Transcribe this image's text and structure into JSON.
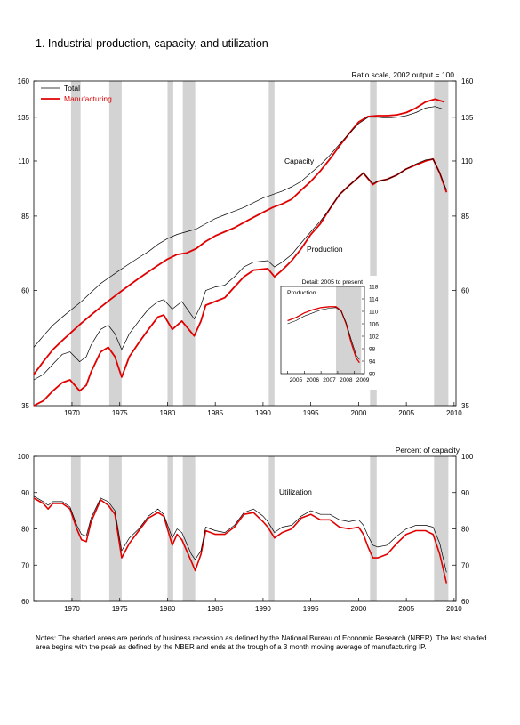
{
  "title": "1.  Industrial production, capacity, and utilization",
  "notes": "Notes: The shaded areas are periods of business recession as defined by the National Bureau of Economic Research (NBER). The last shaded area begins with the peak as defined by the NBER and ends at the trough of a 3 month moving average of manufacturing IP.",
  "colors": {
    "total": "#000000",
    "manufacturing": "#e00000",
    "recession": "#d3d3d3"
  },
  "chart_data": [
    {
      "type": "line",
      "scale_note": "Ratio scale, 2002 output = 100",
      "log_scale": true,
      "ylim": [
        35,
        160
      ],
      "yticks": [
        35,
        60,
        85,
        110,
        135,
        160
      ],
      "xlim": [
        1966,
        2010.2
      ],
      "xticks": [
        1970,
        1975,
        1980,
        1985,
        1990,
        1995,
        2000,
        2005,
        2010
      ],
      "legend": [
        "Total",
        "Manufacturing"
      ],
      "legend_position": "top-left",
      "annotations": [
        "Capacity",
        "Production"
      ],
      "recessions": [
        [
          1969.9,
          1970.9
        ],
        [
          1973.9,
          1975.2
        ],
        [
          1980.0,
          1980.6
        ],
        [
          1981.6,
          1982.9
        ],
        [
          1990.6,
          1991.2
        ],
        [
          2001.2,
          2001.9
        ],
        [
          2007.9,
          2009.4
        ]
      ],
      "series": [
        {
          "name": "Total",
          "x": [
            1966,
            1967,
            1968,
            1969,
            1970,
            1971,
            1972,
            1973,
            1974,
            1975,
            1976,
            1977,
            1978,
            1979,
            1980,
            1981,
            1982,
            1983,
            1984,
            1985,
            1986,
            1987,
            1988,
            1989,
            1990,
            1991,
            1992,
            1993,
            1994,
            1995,
            1996,
            1997,
            1998,
            1999,
            2000,
            2001,
            2002,
            2003,
            2004,
            2005,
            2006,
            2007,
            2008,
            2009
          ],
          "y": [
            46,
            48.5,
            51,
            53,
            55,
            57,
            59.5,
            62,
            64,
            66,
            68,
            70,
            72,
            74.5,
            76.5,
            78,
            79,
            80,
            82,
            84,
            85.5,
            87,
            88.5,
            90.5,
            92.5,
            94,
            95.5,
            97.5,
            100,
            104,
            108,
            113,
            119,
            125,
            131,
            135,
            135,
            134.5,
            135,
            136,
            138,
            141,
            142,
            140
          ]
        },
        {
          "name": "Total",
          "x": [
            1966,
            1967,
            1968,
            1969,
            1969.8,
            1970.8,
            1971.5,
            1972,
            1973,
            1973.8,
            1974.5,
            1975.2,
            1976,
            1977,
            1978,
            1979,
            1979.6,
            1980.5,
            1981.5,
            1982.8,
            1983.5,
            1984,
            1985,
            1986,
            1987,
            1988,
            1989,
            1990.5,
            1991.2,
            1992,
            1993,
            1994,
            1995,
            1996,
            1997,
            1998,
            1999,
            2000.5,
            2001.5,
            2002,
            2003,
            2004,
            2005,
            2006,
            2007,
            2007.8,
            2008.5,
            2009.2
          ],
          "y": [
            39.5,
            40.5,
            42.5,
            44.5,
            45,
            43,
            44,
            46.5,
            50,
            51,
            49,
            45.5,
            49,
            52,
            55,
            57,
            57.5,
            55,
            57,
            52.5,
            56,
            60,
            61,
            61.5,
            64,
            67,
            68.5,
            69,
            67,
            68.5,
            71,
            75,
            79,
            83,
            88,
            94,
            98,
            104,
            99,
            100,
            101,
            103,
            106,
            108.5,
            110.5,
            111,
            104,
            96
          ]
        },
        {
          "name": "Manufacturing",
          "x": [
            1966,
            1967,
            1968,
            1969,
            1970,
            1971,
            1972,
            1973,
            1974,
            1975,
            1976,
            1977,
            1978,
            1979,
            1980,
            1981,
            1982,
            1983,
            1984,
            1985,
            1986,
            1987,
            1988,
            1989,
            1990,
            1991,
            1992,
            1993,
            1994,
            1995,
            1996,
            1997,
            1998,
            1999,
            2000,
            2001,
            2002,
            2003,
            2004,
            2005,
            2006,
            2007,
            2008,
            2009
          ],
          "y": [
            40.5,
            43,
            45.5,
            47.5,
            49.5,
            51.5,
            53.5,
            55.5,
            57.5,
            59.5,
            61.5,
            63.5,
            65.5,
            67.5,
            69.5,
            71,
            71.5,
            73,
            75.5,
            77.5,
            79,
            80.5,
            82.5,
            84.5,
            86.5,
            88.5,
            90,
            92,
            96,
            100,
            105,
            111,
            118,
            125,
            132,
            135.5,
            136,
            136,
            136.5,
            138,
            141,
            145,
            147,
            145
          ]
        },
        {
          "name": "Manufacturing",
          "x": [
            1966,
            1967,
            1968,
            1969,
            1969.8,
            1970.8,
            1971.5,
            1972,
            1973,
            1973.8,
            1974.5,
            1975.2,
            1976,
            1977,
            1978,
            1979,
            1979.6,
            1980.5,
            1981.5,
            1982.8,
            1983.5,
            1984,
            1985,
            1986,
            1987,
            1988,
            1989,
            1990.5,
            1991.2,
            1992,
            1993,
            1994,
            1995,
            1996,
            1997,
            1998,
            1999,
            2000.5,
            2001.5,
            2002,
            2003,
            2004,
            2005,
            2006,
            2007,
            2007.8,
            2008.5,
            2009.2
          ],
          "y": [
            35,
            35.8,
            37.5,
            39,
            39.5,
            37.5,
            38.5,
            41,
            45,
            46,
            44,
            40,
            44,
            47,
            50,
            53,
            53.5,
            50,
            52,
            48.5,
            52,
            56,
            57,
            58,
            61,
            64,
            66,
            66.5,
            64,
            66,
            69,
            73,
            78,
            82,
            88,
            94,
            98,
            104,
            98.5,
            100,
            101,
            103,
            106,
            108,
            110,
            111,
            104,
            95
          ]
        }
      ],
      "inset": {
        "title": "Detail: 2005 to present",
        "label": "Production",
        "ylim": [
          90,
          118
        ],
        "yticks": [
          90,
          94,
          98,
          102,
          106,
          110,
          114,
          118
        ],
        "xlim": [
          2004.6,
          2009.6
        ],
        "xticks": [
          2005,
          2006,
          2007,
          2008,
          2009
        ],
        "series": [
          {
            "name": "Total",
            "x": [
              2005,
              2005.5,
              2006,
              2006.5,
              2007,
              2007.5,
              2007.9,
              2008.2,
              2008.5,
              2008.8,
              2009.1,
              2009.3
            ],
            "y": [
              106,
              107,
              108.5,
              109.5,
              110.5,
              111,
              111.2,
              110,
              106.5,
              101,
              96,
              94.5
            ]
          },
          {
            "name": "Manufacturing",
            "x": [
              2005,
              2005.5,
              2006,
              2006.5,
              2007,
              2007.5,
              2007.9,
              2008.2,
              2008.5,
              2008.8,
              2009.1,
              2009.3
            ],
            "y": [
              107,
              108,
              109.5,
              110.5,
              111.2,
              111.5,
              111.5,
              110.3,
              106,
              100,
              95,
              93.5
            ]
          }
        ]
      }
    },
    {
      "type": "line",
      "scale_note": "Percent of capacity",
      "ylim": [
        60,
        100
      ],
      "yticks": [
        60,
        70,
        80,
        90,
        100
      ],
      "xlim": [
        1966,
        2010.2
      ],
      "xticks": [
        1970,
        1975,
        1980,
        1985,
        1990,
        1995,
        2000,
        2005,
        2010
      ],
      "annotations": [
        "Utilization"
      ],
      "recessions": [
        [
          1969.9,
          1970.9
        ],
        [
          1973.9,
          1975.2
        ],
        [
          1980.0,
          1980.6
        ],
        [
          1981.6,
          1982.9
        ],
        [
          1990.6,
          1991.2
        ],
        [
          2001.2,
          2001.9
        ],
        [
          2007.9,
          2009.4
        ]
      ],
      "series": [
        {
          "name": "Total",
          "x": [
            1966,
            1967,
            1967.5,
            1968,
            1969,
            1969.8,
            1970.5,
            1971,
            1971.5,
            1972,
            1973,
            1973.8,
            1974.5,
            1975.2,
            1976,
            1977,
            1978,
            1979,
            1979.6,
            1980.5,
            1981,
            1981.5,
            1982.5,
            1982.9,
            1983.5,
            1984,
            1985,
            1986,
            1987,
            1988,
            1989,
            1990,
            1990.5,
            1991.2,
            1992,
            1993,
            1994,
            1995,
            1996,
            1997,
            1998,
            1999,
            2000,
            2000.5,
            2001,
            2001.5,
            2002,
            2003,
            2004,
            2005,
            2006,
            2007,
            2007.8,
            2008.5,
            2009.2
          ],
          "y": [
            89,
            87.5,
            86.5,
            87.5,
            87.5,
            86,
            81,
            78.5,
            78,
            83,
            88.5,
            87.5,
            85,
            74,
            77.5,
            80,
            83.5,
            85.5,
            84,
            77.5,
            80,
            79,
            73,
            71.5,
            74,
            80.5,
            79.5,
            79,
            81,
            84.5,
            85.5,
            83.5,
            82,
            79,
            80.5,
            81,
            83.5,
            85,
            84,
            84,
            82.5,
            82,
            82.5,
            81,
            78,
            75.5,
            75,
            75.5,
            78,
            80,
            81,
            81,
            80.5,
            76,
            68
          ]
        },
        {
          "name": "Manufacturing",
          "x": [
            1966,
            1967,
            1967.5,
            1968,
            1969,
            1969.8,
            1970.5,
            1971,
            1971.5,
            1972,
            1973,
            1973.8,
            1974.5,
            1975.2,
            1976,
            1977,
            1978,
            1979,
            1979.6,
            1980.5,
            1981,
            1981.5,
            1982.5,
            1982.9,
            1983.5,
            1984,
            1985,
            1986,
            1987,
            1988,
            1989,
            1990,
            1990.5,
            1991.2,
            1992,
            1993,
            1994,
            1995,
            1996,
            1997,
            1998,
            1999,
            2000,
            2000.5,
            2001,
            2001.5,
            2002,
            2003,
            2004,
            2005,
            2006,
            2007,
            2007.8,
            2008.5,
            2009.2
          ],
          "y": [
            88.5,
            87,
            85.5,
            87,
            87,
            85.5,
            80,
            77,
            76.5,
            82,
            88,
            86.5,
            84,
            72,
            76,
            79.5,
            83,
            84.5,
            83.5,
            75.5,
            78.5,
            77,
            71,
            68.5,
            73,
            79.5,
            78.5,
            78.5,
            80.5,
            84,
            84.5,
            82,
            80.5,
            77.5,
            79,
            80,
            83,
            84,
            82.5,
            82.5,
            80.5,
            80,
            80.5,
            78.5,
            75,
            72,
            72,
            73,
            76,
            78.5,
            79.5,
            79.5,
            78.5,
            73,
            65
          ]
        }
      ]
    }
  ]
}
